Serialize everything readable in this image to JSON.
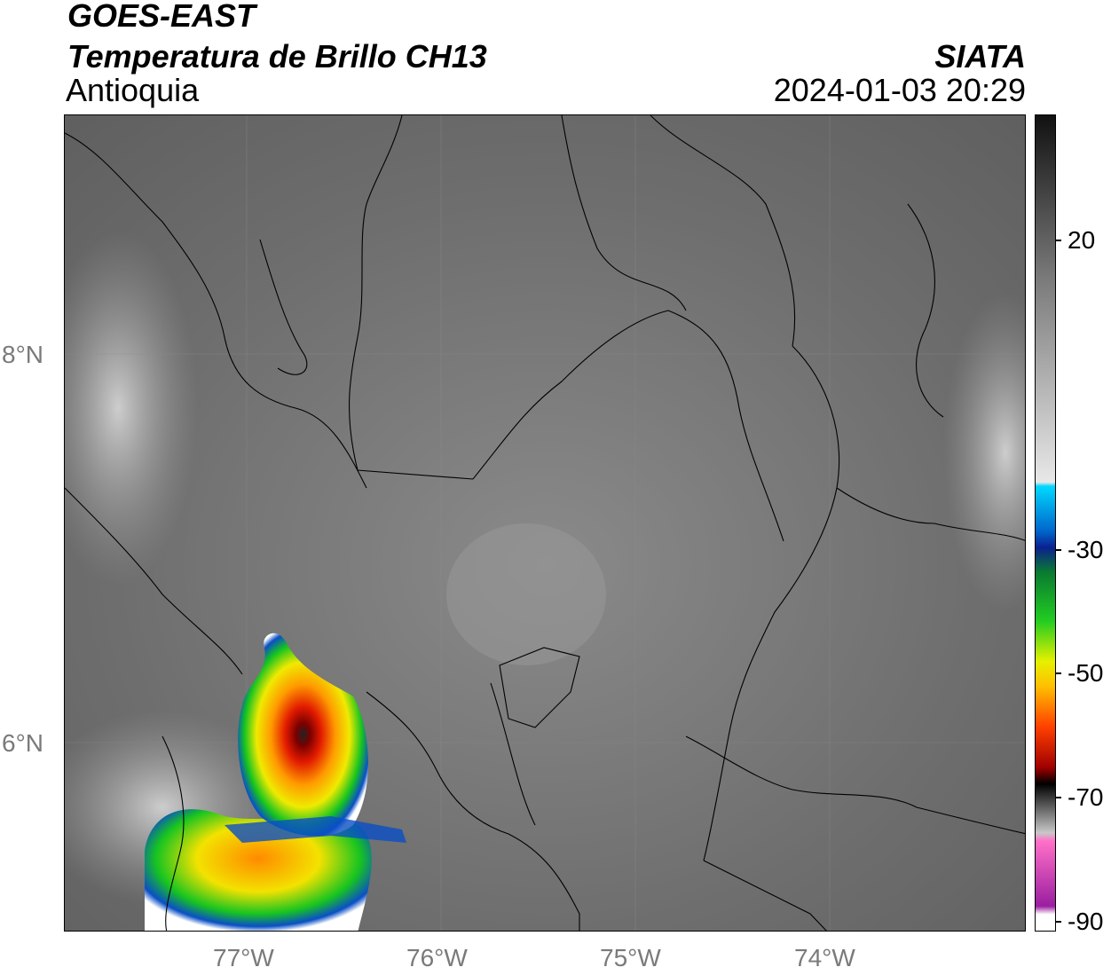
{
  "header": {
    "satellite": "GOES-EAST",
    "product": "Temperatura de Brillo CH13",
    "region": "Antioquia",
    "organization": "SIATA",
    "datetime": "2024-01-03 20:29"
  },
  "map": {
    "latitude_labels": [
      {
        "label": "8°N",
        "value": 8
      },
      {
        "label": "6°N",
        "value": 6
      }
    ],
    "longitude_labels": [
      {
        "label": "77°W",
        "value": -77
      },
      {
        "label": "76°W",
        "value": -76
      },
      {
        "label": "75°W",
        "value": -75
      },
      {
        "label": "74°W",
        "value": -74
      }
    ],
    "colors": {
      "cloud_free_gray": "#6b6b6b",
      "storm_core_red": "#d10000",
      "storm_edge_blue": "#0a50c8",
      "storm_green": "#12c81e",
      "storm_yellow": "#f5e600"
    }
  },
  "colorbar": {
    "unit_hint": "°C",
    "range": [
      -90,
      40
    ],
    "ticks": [
      {
        "label": "20",
        "value": 20
      },
      {
        "label": "-30",
        "value": -30
      },
      {
        "label": "-50",
        "value": -50
      },
      {
        "label": "-70",
        "value": -70
      },
      {
        "label": "-90",
        "value": -90
      }
    ]
  }
}
